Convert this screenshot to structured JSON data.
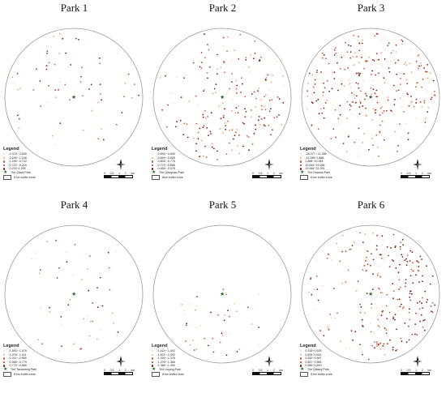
{
  "panels": [
    {
      "title": "Park 1",
      "park_name": "The Qiaoli Park",
      "buffer": "8 km buffer zone",
      "legend": [
        "-4.374~-2.640",
        "-2.639~-1.246",
        "-1.246~-0.722",
        "-0.722~-0.219",
        "-0.219~1.295"
      ],
      "palette": [
        "#f7dcc4",
        "#e9a673",
        "#c8643a",
        "#a8361e",
        "#7a1a10"
      ],
      "dots": 70,
      "spread": "sparse"
    },
    {
      "title": "Park 2",
      "park_name": "The Qiaoyuan Park",
      "buffer": "8km buffer zone",
      "legend": [
        "-0.894~-0.849",
        "-0.849~-0.805",
        "-0.805~-0.775",
        "-0.775~-0.656",
        "-0.656~-0.575"
      ],
      "palette": [
        "#f7dcc4",
        "#e9a673",
        "#c8643a",
        "#a8361e",
        "#7a1a10"
      ],
      "dots": 210,
      "spread": "right"
    },
    {
      "title": "Park 3",
      "park_name": "The Huanan Park",
      "buffer": "8 km buffer zone",
      "legend": [
        "-28.077~-11.285",
        "-11.285~2.888",
        "2.888~10.944",
        "10.944~19.084",
        "19.084~31.251"
      ],
      "palette": [
        "#f7dcc4",
        "#e9a673",
        "#c8643a",
        "#a8361e",
        "#7a1a10"
      ],
      "dots": 320,
      "spread": "top"
    },
    {
      "title": "Park 4",
      "park_name": "The Taoranting Park",
      "buffer": "8 km buffer zone",
      "legend": [
        "-1.593~-1.076",
        "-1.076~-1.011",
        "-1.011~-0.965",
        "-0.965~-0.779",
        "-0.779~-0.666"
      ],
      "palette": [
        "#f7dcc4",
        "#e9a673",
        "#c8643a",
        "#a8361e",
        "#7a1a10"
      ],
      "dots": 55,
      "spread": "center"
    },
    {
      "title": "Park 5",
      "park_name": "The Liuying Park",
      "buffer": "8 km buffer zone",
      "legend": [
        "-1.414~-1.402",
        "-1.402~-1.392",
        "-1.392~-1.376",
        "-1.376~-1.366",
        "-1.366~-1.350"
      ],
      "palette": [
        "#f7dcc4",
        "#e9a673",
        "#c8643a",
        "#a8361e",
        "#7a1a10"
      ],
      "dots": 45,
      "spread": "lowercenter"
    },
    {
      "title": "Park 6",
      "park_name": "The Qiliang Park",
      "buffer": "8 km buffer zone",
      "legend": [
        "0.318~0.525",
        "0.525~0.542",
        "0.542~0.567",
        "0.567~0.585",
        "0.585~0.600"
      ],
      "palette": [
        "#f7dcc4",
        "#e9a673",
        "#c8643a",
        "#a8361e",
        "#7a1a10"
      ],
      "dots": 260,
      "spread": "east"
    }
  ],
  "legend_title": "Legend",
  "scale_ticks": [
    "0",
    "0.5",
    "1",
    "2"
  ],
  "scale_unit": "km",
  "compass_icon": "north-arrow-icon",
  "park_icon": "star-icon"
}
